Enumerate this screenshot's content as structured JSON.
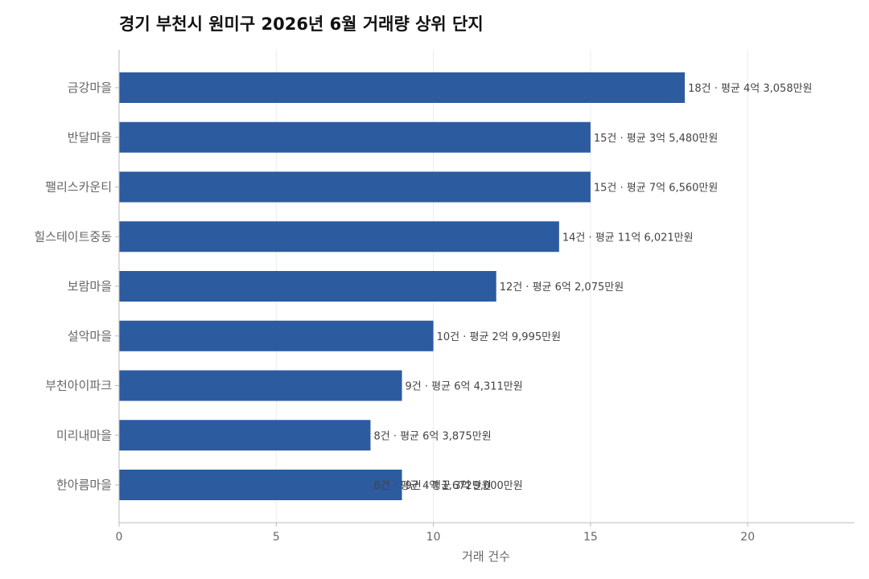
{
  "chart_data": {
    "type": "bar",
    "orientation": "horizontal",
    "title": "경기 부천시 원미구 2026년 6월 거래량 상위 단지",
    "xlabel": "거래 건수",
    "ylabel": "",
    "xlim": [
      0,
      23.4
    ],
    "xticks": [
      0,
      5,
      10,
      15,
      20
    ],
    "grid": "vertical",
    "bar_color": "#2c5ba0",
    "categories": [
      "금강마을",
      "반달마을",
      "팰리스카운티",
      "힐스테이트중동",
      "보람마을",
      "설악마을",
      "부천아이파크",
      "미리내마을",
      "한아름마을"
    ],
    "values": [
      18,
      15,
      15,
      14,
      12,
      10,
      9,
      8,
      9
    ],
    "data_labels": [
      [
        "18건 · 평균 4억 3,058만원"
      ],
      [
        "15건 · 평균 3억 5,480만원"
      ],
      [
        "15건 · 평균 7억 6,560만원"
      ],
      [
        "14건 · 평균 11억 6,021만원"
      ],
      [
        "12건 · 평균 6억 2,075만원"
      ],
      [
        "10건 · 평균 2억 9,995만원"
      ],
      [
        "9건 · 평균 6억 4,311만원"
      ],
      [
        "8건 · 평균 6억 3,875만원"
      ],
      [
        "8건 · 평균 4억 1,672만원",
        "9건 · 평균 3억 9,000만원"
      ]
    ],
    "data_label_positions": [
      [
        18
      ],
      [
        15
      ],
      [
        15
      ],
      [
        14
      ],
      [
        12
      ],
      [
        10
      ],
      [
        9
      ],
      [
        8
      ],
      [
        8,
        9
      ]
    ]
  }
}
